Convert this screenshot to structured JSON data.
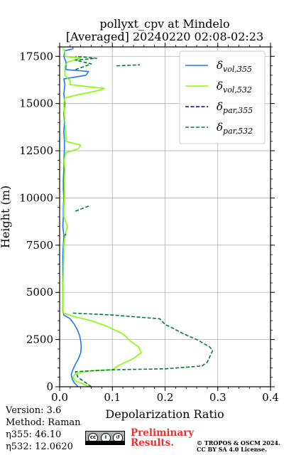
{
  "chart_data": {
    "type": "line",
    "title": "pollyxt_cpv at Mindelo",
    "subtitle": "[Averaged] 20240220 02:08-02:23",
    "xlabel": "Depolarization Ratio",
    "ylabel": "Height (m)",
    "xlim": [
      0,
      0.4
    ],
    "ylim": [
      0,
      18000
    ],
    "xticks": [
      "0.0",
      "0.1",
      "0.2",
      "0.3",
      "0.4"
    ],
    "yticks": [
      "0",
      "2500",
      "5000",
      "7500",
      "10000",
      "12500",
      "15000",
      "17500"
    ],
    "grid": true,
    "legend_position": "top-right",
    "legend": [
      {
        "label": "δvol,355",
        "main": "δ",
        "sub": "vol,355",
        "color": "#1f77f2",
        "style": "solid"
      },
      {
        "label": "δvol,532",
        "main": "δ",
        "sub": "vol,532",
        "color": "#80ff00",
        "style": "solid"
      },
      {
        "label": "δpar,355",
        "main": "δ",
        "sub": "par,355",
        "color": "#0000b4",
        "style": "dashed"
      },
      {
        "label": "δpar,532",
        "main": "δ",
        "sub": "par,532",
        "color": "#007b39",
        "style": "dashed"
      }
    ],
    "series": [
      {
        "name": "δvol,355",
        "color": "#1f77f2",
        "style": "solid",
        "points": [
          [
            0.035,
            0
          ],
          [
            0.028,
            200
          ],
          [
            0.024,
            400
          ],
          [
            0.022,
            650
          ],
          [
            0.025,
            900
          ],
          [
            0.03,
            1200
          ],
          [
            0.036,
            1500
          ],
          [
            0.04,
            1800
          ],
          [
            0.041,
            2100
          ],
          [
            0.04,
            2400
          ],
          [
            0.038,
            2700
          ],
          [
            0.034,
            3000
          ],
          [
            0.028,
            3300
          ],
          [
            0.02,
            3600
          ],
          [
            0.008,
            3800
          ],
          [
            0.006,
            4000
          ],
          [
            0.006,
            5000
          ],
          [
            0.006,
            6000
          ],
          [
            0.006,
            7000
          ],
          [
            0.008,
            8000
          ],
          [
            0.006,
            8500
          ],
          [
            0.007,
            9000
          ],
          [
            0.007,
            9500
          ],
          [
            0.008,
            10000
          ],
          [
            0.007,
            10500
          ],
          [
            0.007,
            11000
          ],
          [
            0.008,
            11500
          ],
          [
            0.008,
            12000
          ],
          [
            0.009,
            12500
          ],
          [
            0.009,
            13000
          ],
          [
            0.008,
            13500
          ],
          [
            0.009,
            14000
          ],
          [
            0.008,
            14500
          ],
          [
            0.01,
            15000
          ],
          [
            0.008,
            15500
          ],
          [
            0.01,
            16000
          ],
          [
            0.008,
            16300
          ],
          [
            0.05,
            16500
          ],
          [
            0.055,
            16700
          ],
          [
            0.012,
            16800
          ],
          [
            0.012,
            17200
          ],
          [
            0.008,
            17500
          ],
          [
            0.01,
            17800
          ],
          [
            0.025,
            17900
          ],
          [
            0.025,
            18000
          ]
        ]
      },
      {
        "name": "δvol,532",
        "color": "#80ff00",
        "style": "solid",
        "points": [
          [
            0.055,
            0
          ],
          [
            0.045,
            150
          ],
          [
            0.03,
            300
          ],
          [
            0.025,
            500
          ],
          [
            0.03,
            700
          ],
          [
            0.06,
            850
          ],
          [
            0.1,
            900
          ],
          [
            0.11,
            1100
          ],
          [
            0.125,
            1300
          ],
          [
            0.14,
            1500
          ],
          [
            0.155,
            1800
          ],
          [
            0.15,
            2100
          ],
          [
            0.135,
            2400
          ],
          [
            0.12,
            2800
          ],
          [
            0.09,
            3200
          ],
          [
            0.06,
            3500
          ],
          [
            0.03,
            3700
          ],
          [
            0.007,
            3900
          ],
          [
            0.006,
            4200
          ],
          [
            0.006,
            5000
          ],
          [
            0.007,
            6000
          ],
          [
            0.008,
            7000
          ],
          [
            0.008,
            7500
          ],
          [
            0.01,
            8000
          ],
          [
            0.015,
            8500
          ],
          [
            0.008,
            9000
          ],
          [
            0.008,
            9500
          ],
          [
            0.009,
            10000
          ],
          [
            0.009,
            10500
          ],
          [
            0.009,
            11000
          ],
          [
            0.01,
            11500
          ],
          [
            0.008,
            12000
          ],
          [
            0.012,
            12400
          ],
          [
            0.035,
            12600
          ],
          [
            0.04,
            12800
          ],
          [
            0.012,
            13000
          ],
          [
            0.01,
            14000
          ],
          [
            0.008,
            15000
          ],
          [
            0.01,
            15300
          ],
          [
            0.04,
            15500
          ],
          [
            0.075,
            15700
          ],
          [
            0.085,
            15800
          ],
          [
            0.02,
            16000
          ],
          [
            0.02,
            16200
          ],
          [
            0.01,
            16500
          ],
          [
            0.01,
            17000
          ],
          [
            0.015,
            17200
          ],
          [
            0.04,
            17400
          ],
          [
            0.01,
            17500
          ],
          [
            0.01,
            17800
          ],
          [
            0.005,
            17900
          ]
        ]
      },
      {
        "name": "δpar,532",
        "color": "#007b39",
        "style": "dashed",
        "points": [
          [
            0.06,
            0
          ],
          [
            0.05,
            200
          ],
          [
            0.035,
            500
          ],
          [
            0.03,
            800
          ],
          [
            0.1,
            900
          ],
          [
            0.2,
            950
          ],
          [
            0.27,
            1100
          ],
          [
            0.28,
            1300
          ],
          [
            0.285,
            1600
          ],
          [
            0.29,
            1900
          ],
          [
            0.285,
            2100
          ],
          [
            0.26,
            2500
          ],
          [
            0.235,
            2800
          ],
          [
            0.215,
            3100
          ],
          [
            0.2,
            3300
          ],
          [
            0.19,
            3600
          ],
          [
            0.1,
            3800
          ],
          [
            0.025,
            3900
          ]
        ]
      },
      {
        "name": "δpar,532",
        "color": "#007b39",
        "style": "dashed",
        "points": [
          [
            0.03,
            9300
          ],
          [
            0.058,
            9600
          ]
        ]
      },
      {
        "name": "δpar,532",
        "color": "#007b39",
        "style": "dashed",
        "points": [
          [
            0.01,
            8000
          ],
          [
            0.012,
            8100
          ]
        ]
      },
      {
        "name": "δpar,532",
        "color": "#007b39",
        "style": "dashed",
        "points": [
          [
            0.03,
            16800
          ],
          [
            0.06,
            17100
          ],
          [
            0.03,
            17300
          ],
          [
            0.07,
            17400
          ],
          [
            0.03,
            17500
          ]
        ]
      },
      {
        "name": "δpar,532",
        "color": "#007b39",
        "style": "dashed",
        "points": [
          [
            0.108,
            17000
          ],
          [
            0.152,
            17050
          ]
        ]
      }
    ]
  },
  "footer": {
    "version": "Version: 3.6",
    "method": "Method: Raman",
    "eta355": "η355:  46.10",
    "eta532": "η532: 12.0620",
    "preliminary_line1": "Preliminary",
    "preliminary_line2": "Results.",
    "license_line1": "© TROPOS & OSCM 2024.",
    "license_line2": "CC BY SA 4.0 License.",
    "cc_badge": "cc-by-sa-icon"
  }
}
